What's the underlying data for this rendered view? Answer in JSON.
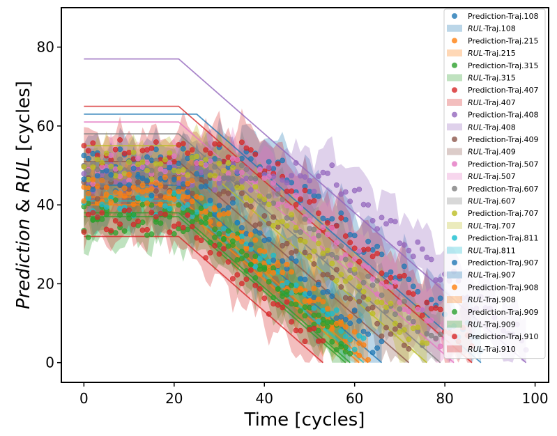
{
  "chart_data": {
    "type": "scatter",
    "title": "",
    "xlabel": "Time [cycles]",
    "ylabel_parts": [
      {
        "text": "Prediction",
        "italic": true
      },
      {
        "text": " & ",
        "italic": false
      },
      {
        "text": "RUL",
        "italic": true
      },
      {
        "text": "  [cycles]",
        "italic": false
      }
    ],
    "xlim": [
      -5,
      103
    ],
    "ylim": [
      -5,
      90
    ],
    "xticks": [
      0,
      20,
      40,
      60,
      80,
      100
    ],
    "yticks": [
      0,
      20,
      40,
      60,
      80
    ],
    "grid": false,
    "legend_position": "top-right",
    "trajectories": [
      {
        "id": "108",
        "pred_label": "Prediction-Traj.108",
        "rul_label": "RUL-Traj.108",
        "color": "#1f77b4",
        "end": 88,
        "rul_start": 63,
        "pred_start": 51,
        "phase": 0.0
      },
      {
        "id": "215",
        "pred_label": "Prediction-Traj.215",
        "rul_label": "RUL-Traj.215",
        "color": "#ff7f0e",
        "end": 61,
        "rul_start": 40,
        "pred_start": 43,
        "phase": 1.1
      },
      {
        "id": "315",
        "pred_label": "Prediction-Traj.315",
        "rul_label": "RUL-Traj.315",
        "color": "#2ca02c",
        "end": 59,
        "rul_start": 38,
        "pred_start": 39,
        "phase": 2.3
      },
      {
        "id": "407",
        "pred_label": "Prediction-Traj.407",
        "rul_label": "RUL-Traj.407",
        "color": "#d62728",
        "end": 86,
        "rul_start": 65,
        "pred_start": 53,
        "phase": 0.6
      },
      {
        "id": "408",
        "pred_label": "Prediction-Traj.408",
        "rul_label": "RUL-Traj.408",
        "color": "#9467bd",
        "end": 98,
        "rul_start": 77,
        "pred_start": 47,
        "phase": 3.1
      },
      {
        "id": "409",
        "pred_label": "Prediction-Traj.409",
        "rul_label": "RUL-Traj.409",
        "color": "#8c564b",
        "end": 72,
        "rul_start": 51,
        "pred_start": 45,
        "phase": 1.7
      },
      {
        "id": "507",
        "pred_label": "Prediction-Traj.507",
        "rul_label": "RUL-Traj.507",
        "color": "#e377c2",
        "end": 82,
        "rul_start": 61,
        "pred_start": 49,
        "phase": 2.8
      },
      {
        "id": "607",
        "pred_label": "Prediction-Traj.607",
        "rul_label": "RUL-Traj.607",
        "color": "#7f7f7f",
        "end": 79,
        "rul_start": 58,
        "pred_start": 48,
        "phase": 0.3
      },
      {
        "id": "707",
        "pred_label": "Prediction-Traj.707",
        "rul_label": "RUL-Traj.707",
        "color": "#bcbd22",
        "end": 76,
        "rul_start": 55,
        "pred_start": 50,
        "phase": 4.0
      },
      {
        "id": "811",
        "pred_label": "Prediction-Traj.811",
        "rul_label": "RUL-Traj.811",
        "color": "#17becf",
        "end": 62,
        "rul_start": 41,
        "pred_start": 40,
        "phase": 2.0
      },
      {
        "id": "907",
        "pred_label": "Prediction-Traj.907",
        "rul_label": "RUL-Traj.907",
        "color": "#1f77b4",
        "end": 66,
        "rul_start": 45,
        "pred_start": 46,
        "phase": 3.6
      },
      {
        "id": "908",
        "pred_label": "Prediction-Traj.908",
        "rul_label": "RUL-Traj.908",
        "color": "#ff7f0e",
        "end": 63,
        "rul_start": 42,
        "pred_start": 44,
        "phase": 5.0
      },
      {
        "id": "909",
        "pred_label": "Prediction-Traj.909",
        "rul_label": "RUL-Traj.909",
        "color": "#2ca02c",
        "end": 58,
        "rul_start": 37,
        "pred_start": 35,
        "phase": 4.4
      },
      {
        "id": "910",
        "pred_label": "Prediction-Traj.910",
        "rul_label": "RUL-Traj.910",
        "color": "#d62728",
        "end": 53,
        "rul_start": 32,
        "pred_start": 40,
        "phase": 5.6
      }
    ]
  }
}
